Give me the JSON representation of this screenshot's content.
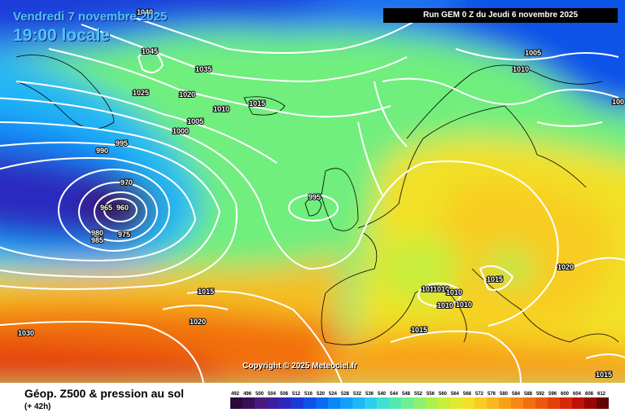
{
  "header": {
    "valid_date": "Vendredi 7 novembre 2025",
    "valid_time": "19:00 locale",
    "run_info": "Run GEM 0 Z du Jeudi 6 novembre 2025"
  },
  "copyright": "Copyright © 2025 Meteociel.fr",
  "footer": {
    "product_title": "Géop. Z500 & pression au sol",
    "lead_time": "(+ 42h)"
  },
  "scale_labels": [
    "492",
    "496",
    "500",
    "504",
    "508",
    "512",
    "516",
    "520",
    "524",
    "528",
    "532",
    "536",
    "540",
    "544",
    "548",
    "552",
    "556",
    "560",
    "564",
    "568",
    "572",
    "576",
    "580",
    "584",
    "588",
    "592",
    "596",
    "600",
    "604",
    "608",
    "612"
  ],
  "scale_colors": [
    "#2a0a3a",
    "#3a0f5a",
    "#4a1a80",
    "#3b1fa0",
    "#2a2ac0",
    "#1c3ad8",
    "#0f52e8",
    "#0a6af2",
    "#0a86f8",
    "#12a0fa",
    "#1eb8f6",
    "#2cd0ee",
    "#3ee0d0",
    "#54e8b0",
    "#6ef090",
    "#8cf070",
    "#aaf050",
    "#c8ee3a",
    "#e0ea2e",
    "#f2e028",
    "#f8cc22",
    "#fab81e",
    "#f8a018",
    "#f68814",
    "#f27010",
    "#ec580e",
    "#e4400c",
    "#d8280a",
    "#c01008",
    "#980606",
    "#600404"
  ],
  "isobar_labels": [
    "1040",
    "1045",
    "1035",
    "1025",
    "1020",
    "1010",
    "1015",
    "1005",
    "1000",
    "995",
    "990",
    "970",
    "965",
    "960",
    "980",
    "985",
    "975",
    "1015",
    "1020",
    "995",
    "1005",
    "1010",
    "1010",
    "1010",
    "1010",
    "1010",
    "1010",
    "1015",
    "1015",
    "1020",
    "1015",
    "100",
    "1030"
  ]
}
